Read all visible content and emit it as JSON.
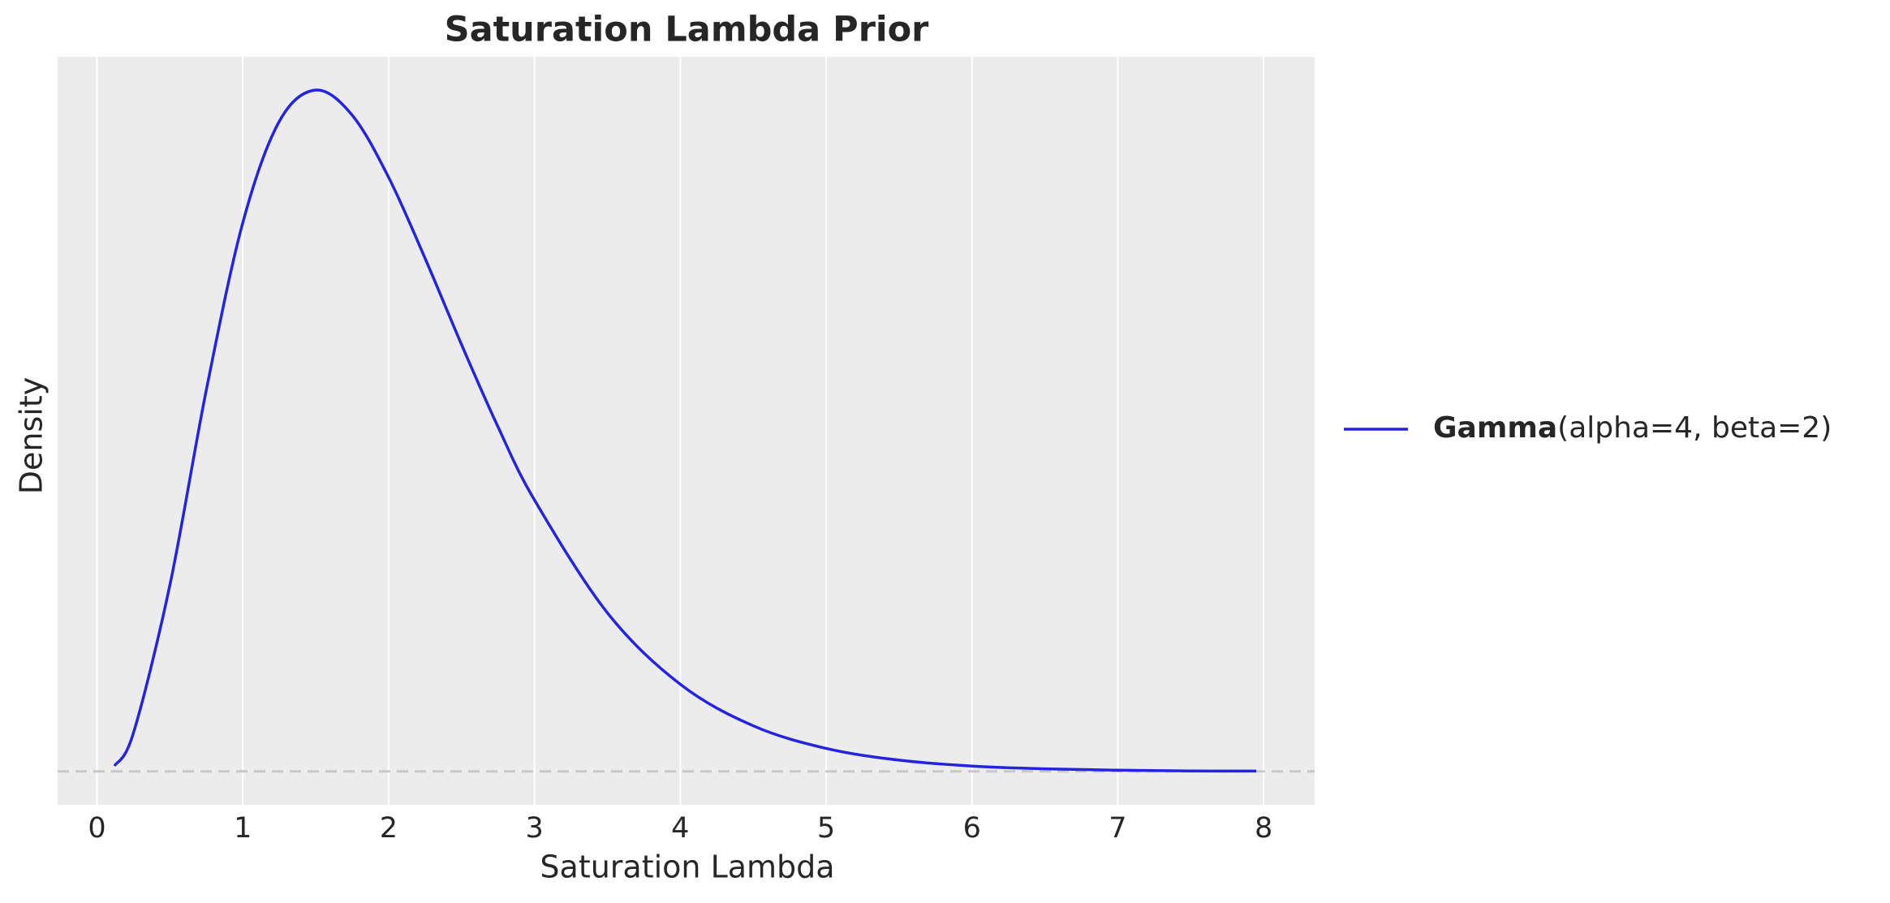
{
  "chart_data": {
    "type": "line",
    "title": "Saturation Lambda Prior",
    "x_label": "Saturation Lambda",
    "y_label": "Density",
    "series": [
      {
        "name": "Gamma",
        "name_suffix": "(alpha=4, beta=2)",
        "color": "#2424e0",
        "x": [
          0.12,
          0.25,
          0.5,
          0.75,
          1,
          1.25,
          1.5,
          1.75,
          2,
          2.25,
          2.5,
          2.75,
          3,
          3.5,
          4,
          4.5,
          5,
          5.5,
          6,
          6.5,
          7,
          7.5,
          7.95
        ],
        "values": [
          0.0036,
          0.0253,
          0.1226,
          0.251,
          0.3609,
          0.4275,
          0.4481,
          0.4316,
          0.3907,
          0.3374,
          0.2807,
          0.2266,
          0.1785,
          0.1043,
          0.0573,
          0.03,
          0.0151,
          0.0074,
          0.0035,
          0.0017,
          0.0008,
          0.0003,
          0.0002
        ]
      }
    ],
    "xlim": [
      -0.27,
      8.35
    ],
    "ylim": [
      -0.022,
      0.47
    ],
    "xticks": [
      0,
      1,
      2,
      3,
      4,
      5,
      6,
      7,
      8
    ],
    "hline": 0,
    "grid": "x",
    "legend": "right"
  }
}
